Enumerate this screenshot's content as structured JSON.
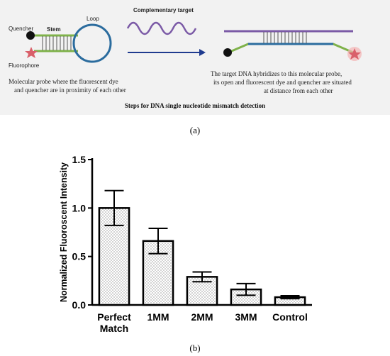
{
  "panel_a": {
    "labels": {
      "quencher": "Quencher",
      "stem": "Stem",
      "loop": "Loop",
      "fluorophore": "Fluorophore",
      "complementary_target": "Complementary target"
    },
    "left_description": [
      "Molecular probe where the fluorescent dye",
      "and quencher are in proximity of each other"
    ],
    "right_description": [
      "The target DNA hybridizes to this molecular probe,",
      "its open and fluorescent dye and quencher are situated",
      "at distance from each other"
    ],
    "title": "Steps for DNA single nucleotide mismatch detection",
    "colors": {
      "quencher": "#111111",
      "fluorophore": "#d9606a",
      "loop": "#2b6c9e",
      "stem": "#7fb24a",
      "target": "#7b5aa6",
      "arrow": "#1f3b8f"
    }
  },
  "caption_a": "(a)",
  "caption_b": "(b)",
  "chart_data": {
    "type": "bar",
    "categories": [
      [
        "Perfect",
        "Match"
      ],
      [
        "1MM"
      ],
      [
        "2MM"
      ],
      [
        "3MM"
      ],
      [
        "Control"
      ]
    ],
    "values": [
      1.0,
      0.66,
      0.29,
      0.16,
      0.08
    ],
    "error": [
      0.18,
      0.13,
      0.05,
      0.06,
      0.015
    ],
    "ylabel": "Normalized Fluoroscent Intensity",
    "ylim": [
      0,
      1.5
    ],
    "yticks": [
      "0.0",
      "0.5",
      "1.0",
      "1.5"
    ],
    "ytick_values": [
      0,
      0.5,
      1.0,
      1.5
    ],
    "bar_fill": "dotted pattern",
    "grid": false
  }
}
